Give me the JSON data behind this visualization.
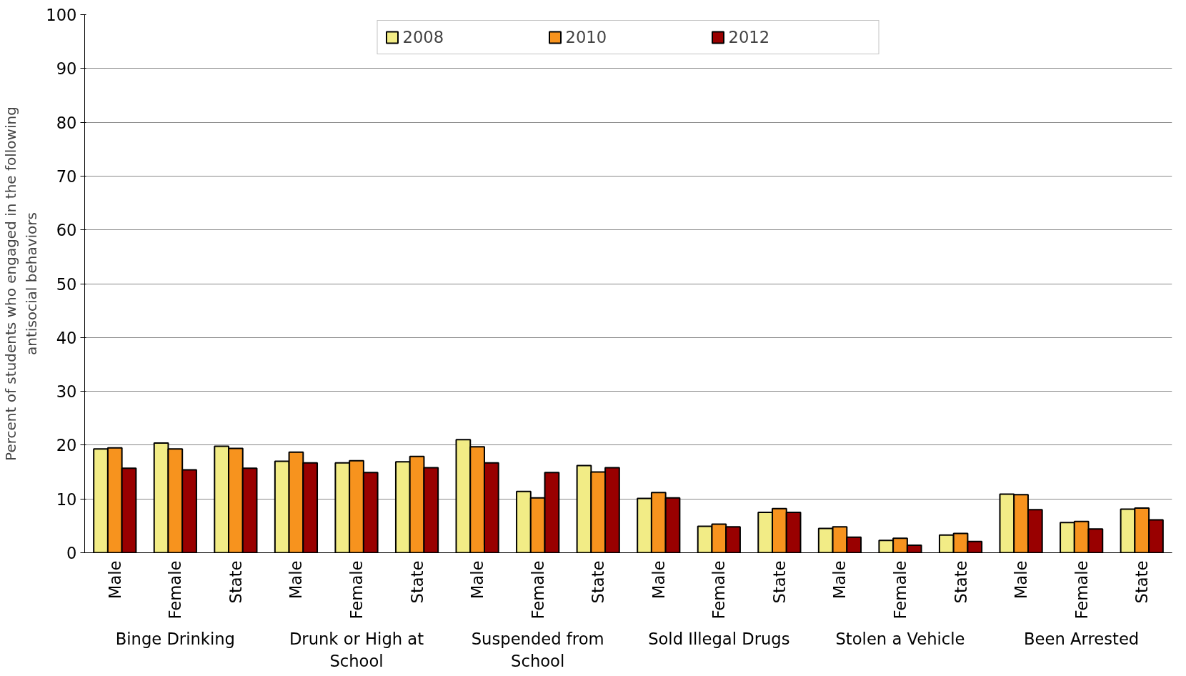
{
  "chart_data": {
    "type": "bar",
    "ylabel": "Percent of students who engaged in the following antisocial behaviors",
    "categories": [
      "Male",
      "Female",
      "State",
      "Male",
      "Female",
      "State",
      "Male",
      "Female",
      "State",
      "Male",
      "Female",
      "State",
      "Male",
      "Female",
      "State",
      "Male",
      "Female",
      "State"
    ],
    "annotations": [
      "Binge Drinking",
      "Drunk or High at School",
      "Suspended from School",
      "Sold Illegal Drugs",
      "Stolen a Vehicle",
      "Been Arrested"
    ],
    "series": [
      {
        "name": "2008",
        "color": "#f2ec86",
        "values": [
          19.3,
          20.4,
          19.8,
          17.0,
          16.7,
          16.9,
          21.0,
          11.4,
          16.2,
          10.1,
          4.9,
          7.5,
          4.5,
          2.3,
          3.3,
          10.9,
          5.6,
          8.1
        ]
      },
      {
        "name": "2010",
        "color": "#f7931e",
        "values": [
          19.5,
          19.3,
          19.4,
          18.7,
          17.1,
          17.9,
          19.7,
          10.2,
          15.0,
          11.2,
          5.3,
          8.2,
          4.8,
          2.7,
          3.6,
          10.8,
          5.8,
          8.3
        ]
      },
      {
        "name": "2012",
        "color": "#990000",
        "values": [
          15.7,
          15.4,
          15.7,
          16.7,
          14.9,
          15.8,
          16.7,
          14.9,
          15.8,
          10.2,
          4.8,
          7.5,
          2.9,
          1.4,
          2.1,
          8.0,
          4.4,
          6.1
        ]
      }
    ],
    "ylim": [
      0,
      100
    ],
    "yticks": [
      0,
      10,
      20,
      30,
      40,
      50,
      60,
      70,
      80,
      90,
      100
    ],
    "grid": "y",
    "legend": "top"
  }
}
